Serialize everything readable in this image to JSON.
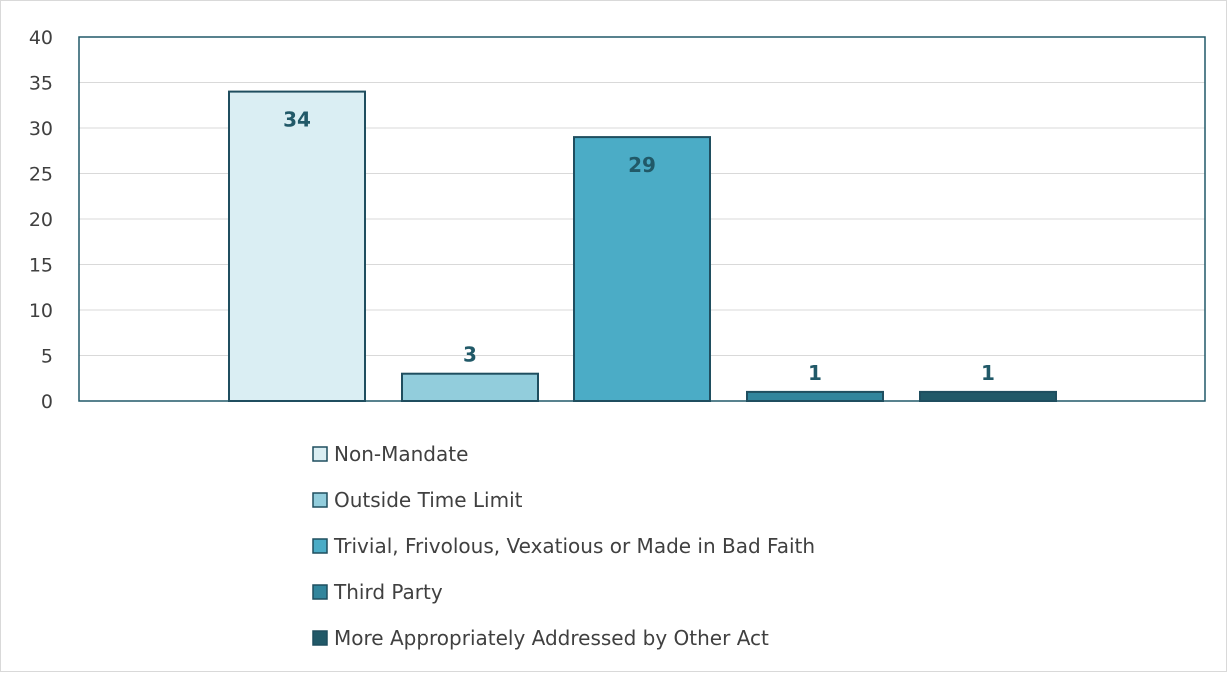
{
  "chart_data": {
    "type": "bar",
    "categories": [
      "Non-Mandate",
      "Outside Time Limit",
      "Trivial, Frivolous, Vexatious or Made in Bad Faith",
      "Third Party",
      "More Appropriately Addressed by Other Act"
    ],
    "values": [
      34,
      3,
      29,
      1,
      1
    ],
    "data_labels": [
      "34",
      "3",
      "29",
      "1",
      "1"
    ],
    "colors": [
      "#daeef3",
      "#92cddc",
      "#4bacc6",
      "#31859c",
      "#215968"
    ],
    "outline_color": "#1f4e5f",
    "label_color": "#215968",
    "ylim": [
      0,
      40
    ],
    "yticks": [
      0,
      5,
      10,
      15,
      20,
      25,
      30,
      35,
      40
    ],
    "grid": true,
    "legend_position": "bottom",
    "title": "",
    "xlabel": "",
    "ylabel": ""
  }
}
